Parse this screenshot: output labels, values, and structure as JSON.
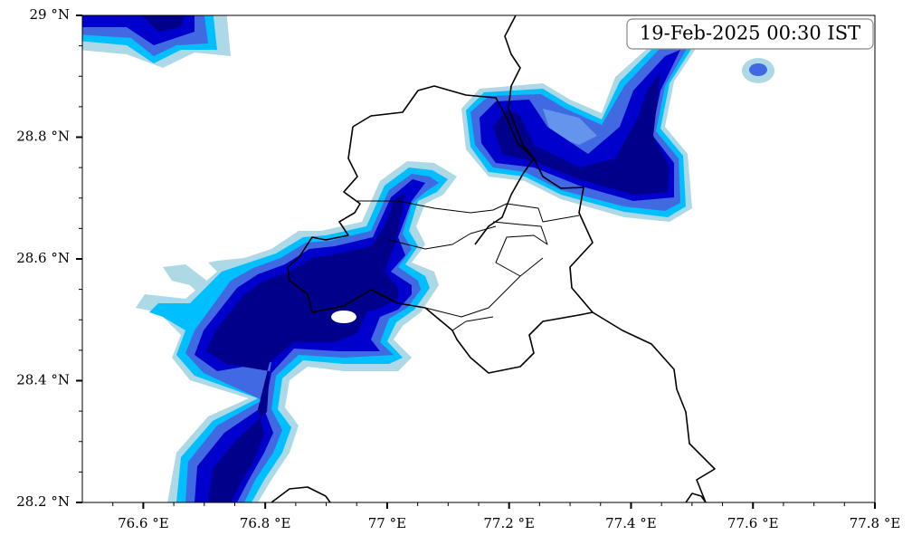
{
  "map": {
    "timestamp": "19-Feb-2025 00:30 IST",
    "xaxis": {
      "lim": [
        76.5,
        77.8
      ],
      "ticks": [
        {
          "value": 76.6,
          "label": "76.6 °E"
        },
        {
          "value": 76.8,
          "label": "76.8 °E"
        },
        {
          "value": 77.0,
          "label": "77 °E"
        },
        {
          "value": 77.2,
          "label": "77.2 °E"
        },
        {
          "value": 77.4,
          "label": "77.4 °E"
        },
        {
          "value": 77.6,
          "label": "77.6 °E"
        },
        {
          "value": 77.8,
          "label": "77.8 °E"
        }
      ],
      "minor_ticks": [
        76.55,
        76.65,
        76.7,
        76.75,
        76.85,
        76.9,
        76.95,
        77.05,
        77.1,
        77.15,
        77.25,
        77.3,
        77.35,
        77.45,
        77.5,
        77.55,
        77.65,
        77.7,
        77.75
      ]
    },
    "yaxis": {
      "lim": [
        28.2,
        29.0
      ],
      "ticks": [
        {
          "value": 28.2,
          "label": "28.2 °N"
        },
        {
          "value": 28.4,
          "label": "28.4 °N"
        },
        {
          "value": 28.6,
          "label": "28.6 °N"
        },
        {
          "value": 28.8,
          "label": "28.8 °N"
        },
        {
          "value": 29.0,
          "label": "29 °N"
        }
      ],
      "minor_ticks": [
        28.25,
        28.3,
        28.35,
        28.45,
        28.5,
        28.55,
        28.65,
        28.7,
        28.75,
        28.85,
        28.9,
        28.95
      ]
    }
  }
}
